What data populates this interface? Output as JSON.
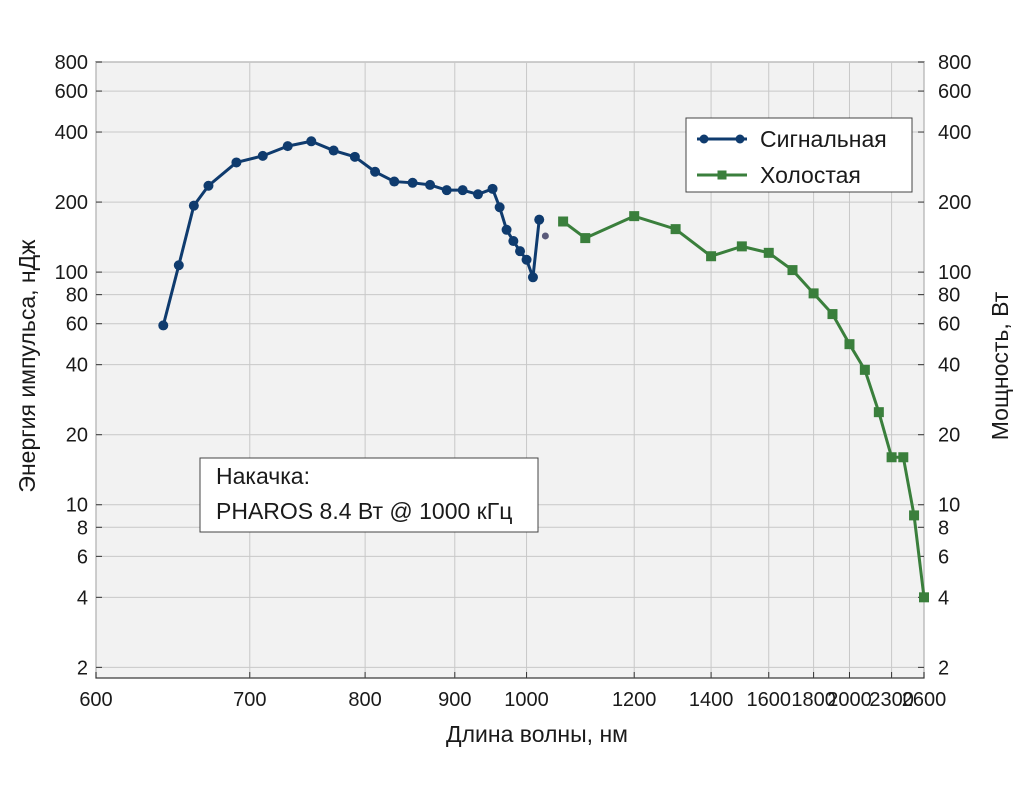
{
  "chart_data": {
    "type": "line",
    "xlabel": "Длина волны, нм",
    "ylabel_left": "Энергия импульса, нДж",
    "ylabel_right": "Мощность, Вт",
    "x_scale": "reciprocal",
    "y_scale": "log",
    "xlim": [
      600,
      2600
    ],
    "ylim": [
      1.8,
      800
    ],
    "grid": true,
    "legend_position": "top-right",
    "x_ticks": [
      600,
      700,
      800,
      900,
      1000,
      1200,
      1400,
      1600,
      1800,
      2000,
      2300,
      2600
    ],
    "y_ticks": [
      2,
      4,
      6,
      8,
      10,
      20,
      40,
      60,
      80,
      100,
      200,
      400,
      600,
      800
    ],
    "series": [
      {
        "name": "Сигнальная",
        "color": "#0f3b6e",
        "marker": "circle",
        "x": [
          640,
          650,
          660,
          670,
          690,
          710,
          730,
          750,
          770,
          790,
          810,
          830,
          850,
          870,
          890,
          910,
          930,
          950,
          960,
          970,
          980,
          990,
          1000,
          1010,
          1020
        ],
        "y": [
          59,
          107,
          193,
          235,
          296,
          316,
          348,
          365,
          333,
          313,
          270,
          245,
          242,
          237,
          225,
          225,
          216,
          228,
          190,
          152,
          136,
          123,
          113,
          95,
          168
        ]
      },
      {
        "name": "Холостая",
        "color": "#3a7f3c",
        "marker": "square",
        "x": [
          1060,
          1100,
          1200,
          1300,
          1400,
          1500,
          1600,
          1700,
          1800,
          1900,
          2000,
          2100,
          2200,
          2300,
          2400,
          2500,
          2600
        ],
        "y": [
          165,
          140,
          174,
          153,
          117,
          129,
          121,
          102,
          81,
          66,
          49,
          38,
          25,
          16,
          16,
          9,
          4
        ]
      }
    ],
    "stray_point": {
      "x": 1030,
      "y": 143,
      "color": "#5a5a7a"
    },
    "annotation": {
      "lines": [
        "Накачка:",
        "PHAROS 8.4 Вт @ 1000 кГц"
      ]
    }
  }
}
